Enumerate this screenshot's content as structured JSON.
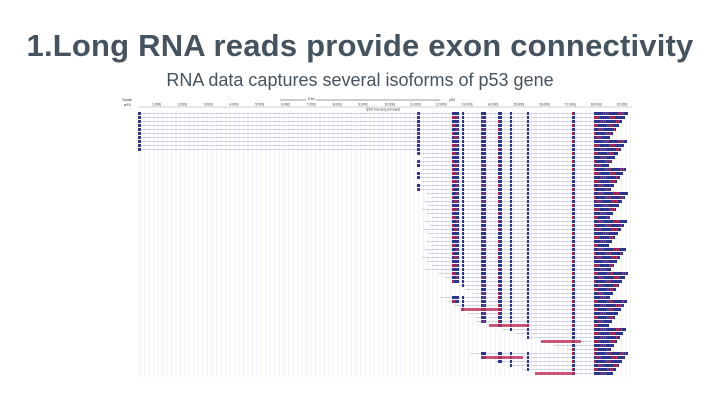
{
  "slide": {
    "title": "1.Long RNA reads provide exon connectivity",
    "subtitle": "RNA data captures several isoforms of p53 gene"
  },
  "browser": {
    "scale_label": "Scale",
    "chrom_label": "p53",
    "ruler_label": "5 kb",
    "gene_label": "p53",
    "track_label": "tp53 rna-seq pd reads",
    "ruler_ticks": [
      "1,000|",
      "2,000|",
      "3,000|",
      "4,000|",
      "5,000|",
      "6,000|",
      "7,000|",
      "8,000|",
      "9,000|",
      "10,000|",
      "11,000|",
      "12,000|",
      "13,000|",
      "14,000|",
      "15,000|",
      "16,000|",
      "17,000|",
      "18,000|",
      "19,000|"
    ],
    "colors": {
      "exon_blue": "#2a3590",
      "exon_red": "#c0305c",
      "intron_line": "#9aa3c8",
      "grid": "#cfd3ea",
      "text": "#333333"
    }
  }
}
